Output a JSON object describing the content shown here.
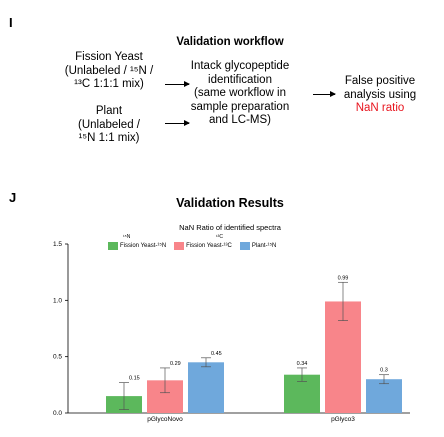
{
  "panel_i": {
    "letter": "I",
    "title": "Validation workflow",
    "input1_lines": [
      "Fission Yeast",
      "(Unlabeled / ¹⁵N /",
      "¹³C 1:1:1 mix)"
    ],
    "input2_lines": [
      "Plant",
      "(Unlabeled /",
      "¹⁵N 1:1 mix)"
    ],
    "step_lines": [
      "Intack glycopeptide",
      "identification",
      "(same workflow in",
      "sample preparation",
      "and LC-MS)"
    ],
    "output_lines": [
      "False positive",
      "analysis using"
    ],
    "output_highlight": "NaN ratio",
    "highlight_color": "#e8141e"
  },
  "panel_j": {
    "letter": "J",
    "legend_above_1": "¹⁵N",
    "legend_above_2": "¹³C"
  },
  "chart_data": {
    "type": "bar",
    "title": "Validation Results",
    "subtitle": "NaN Ratio of identified spectra",
    "categories": [
      "pGlycoNovo",
      "pGlyco3"
    ],
    "series": [
      {
        "name": "Fission Yeast-¹⁵N",
        "color": "#5cb85c",
        "values": [
          0.15,
          0.34
        ],
        "err": [
          0.12,
          0.06
        ]
      },
      {
        "name": "Fission Yeast-¹³C",
        "color": "#f8858a",
        "values": [
          0.29,
          0.99
        ],
        "err": [
          0.11,
          0.17
        ]
      },
      {
        "name": "Plant-¹⁵N",
        "color": "#6fa8dc",
        "values": [
          0.45,
          0.3
        ],
        "err": [
          0.04,
          0.04
        ]
      }
    ],
    "value_labels": [
      [
        "0.15",
        "0.34"
      ],
      [
        "0.29",
        "0.99"
      ],
      [
        "0.45",
        "0.3"
      ]
    ],
    "ylim": [
      0,
      1.5
    ],
    "yticks": [
      0.0,
      0.5,
      1.0,
      1.5
    ],
    "ytick_labels": [
      "0.0",
      "0.5",
      "1.0",
      "1.5"
    ],
    "grid": false,
    "legend_position": "top"
  }
}
